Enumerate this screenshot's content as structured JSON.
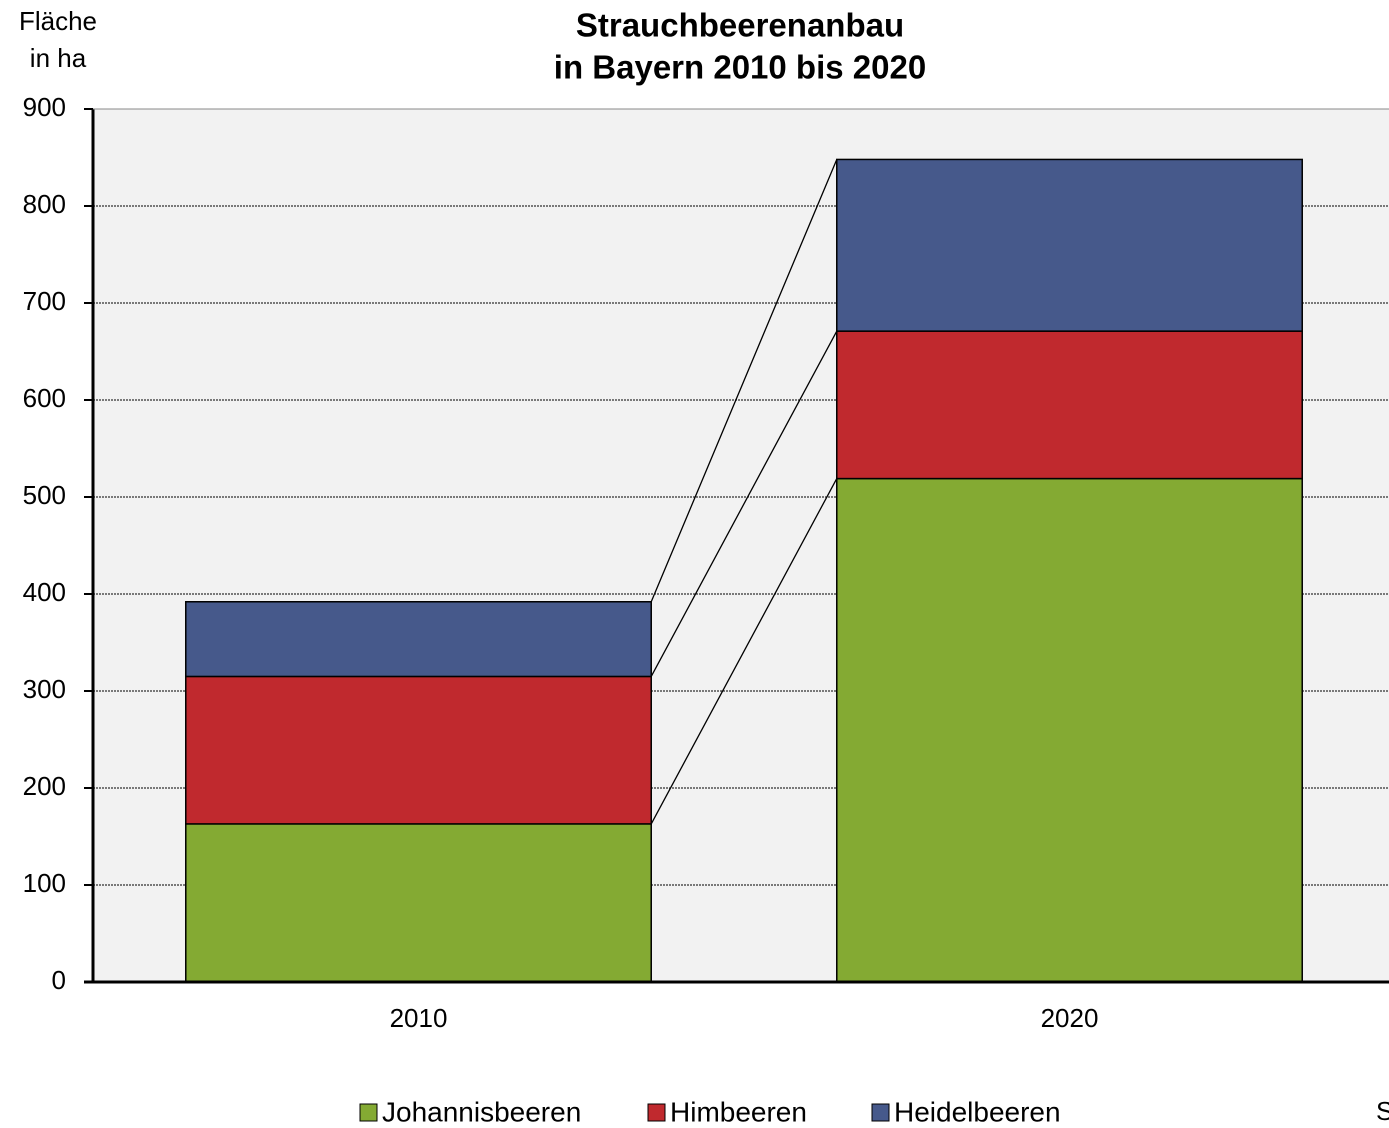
{
  "chart_data": {
    "type": "stacked_bar",
    "title": [
      "Strauchbeerenanbau",
      "in Bayern 2010 bis 2020"
    ],
    "y_label": [
      "Fläche",
      "in ha"
    ],
    "categories": [
      "2010",
      "2020"
    ],
    "series": [
      {
        "name": "Johannisbeeren",
        "color": "#84aa33",
        "values": [
          163,
          519
        ]
      },
      {
        "name": "Himbeeren",
        "color": "#c0292e",
        "values": [
          152,
          152
        ]
      },
      {
        "name": "Heidelbeeren",
        "color": "#46598b",
        "values": [
          77,
          177
        ]
      }
    ],
    "ylim": [
      0,
      900
    ],
    "yticks": [
      0,
      100,
      200,
      300,
      400,
      500,
      600,
      700,
      800,
      900
    ],
    "grid": true,
    "connectors": true,
    "legend": "bottom",
    "footnote": "S"
  }
}
